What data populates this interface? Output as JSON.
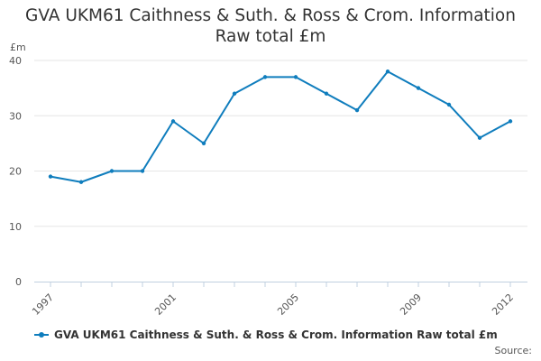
{
  "title": {
    "line1": "GVA UKM61 Caithness & Suth. & Ross & Crom. Information",
    "line2": "Raw total £m"
  },
  "colors": {
    "series": "#0f7dbd",
    "grid": "#e6e6e6",
    "axis": "#c0d0e0",
    "text": "#333333"
  },
  "source_label": "Source:",
  "chart_data": {
    "type": "line",
    "title": "GVA UKM61 Caithness & Suth. & Ross & Crom. Information Raw total £m",
    "xlabel": "",
    "ylabel": "£m",
    "x": [
      1997,
      1998,
      1999,
      2000,
      2001,
      2002,
      2003,
      2004,
      2005,
      2006,
      2007,
      2008,
      2009,
      2010,
      2011,
      2012
    ],
    "x_tick_labels": [
      "1997",
      "2001",
      "2005",
      "2009",
      "2012"
    ],
    "y_ticks": [
      0,
      10,
      20,
      30,
      40
    ],
    "xlim": [
      1997,
      2012
    ],
    "ylim": [
      0,
      40
    ],
    "grid": true,
    "legend_position": "bottom-left",
    "series": [
      {
        "name": "GVA UKM61 Caithness & Suth. & Ross & Crom. Information Raw total £m",
        "values": [
          19,
          18,
          20,
          20,
          29,
          25,
          34,
          37,
          37,
          34,
          31,
          38,
          35,
          32,
          26,
          29
        ]
      }
    ]
  }
}
